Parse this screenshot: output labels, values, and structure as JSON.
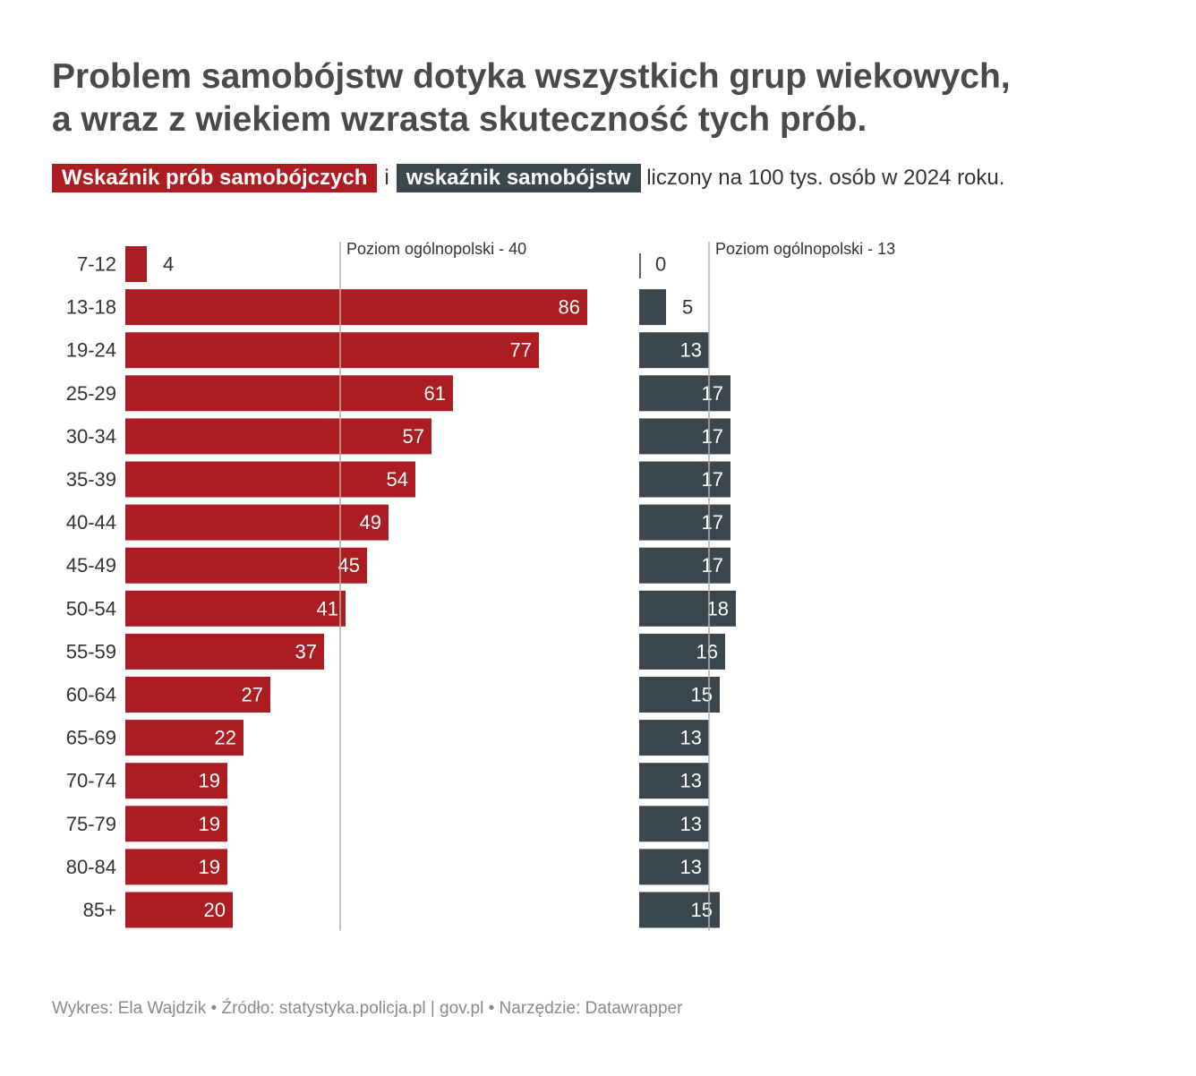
{
  "title_line1": "Problem samobójstw dotyka wszystkich grup wiekowych,",
  "title_line2": "a wraz z wiekiem wzrasta skuteczność tych prób.",
  "subtitle": {
    "highlight1": "Wskaźnik prób samobójczych",
    "connector": "i",
    "highlight2": "wskaźnik samobójstw",
    "rest": "liczony na 100 tys. osób w 2024 roku."
  },
  "colors": {
    "attempts": "#ad1c21",
    "suicides": "#3a474d",
    "reference_line": "#b3b3b3",
    "text": "#333333"
  },
  "chart_data": {
    "type": "bar",
    "orientation": "horizontal",
    "categories": [
      "7-12",
      "13-18",
      "19-24",
      "25-29",
      "30-34",
      "35-39",
      "40-44",
      "45-49",
      "50-54",
      "55-59",
      "60-64",
      "65-69",
      "70-74",
      "75-79",
      "80-84",
      "85+"
    ],
    "series": [
      {
        "name": "Wskaźnik prób samobójczych",
        "values": [
          4,
          86,
          77,
          61,
          57,
          54,
          49,
          45,
          41,
          37,
          27,
          22,
          19,
          19,
          19,
          20
        ],
        "reference": {
          "value": 40,
          "label": "Poziom ogólnopolski - 40"
        }
      },
      {
        "name": "wskaźnik samobójstw",
        "values": [
          0,
          5,
          13,
          17,
          17,
          17,
          17,
          17,
          18,
          16,
          15,
          13,
          13,
          13,
          13,
          15
        ],
        "reference": {
          "value": 13,
          "label": "Poziom ogólnopolski - 13"
        }
      }
    ],
    "grid": false,
    "legend": "in subtitle"
  },
  "footer": "Wykres: Ela Wajdzik • Źródło: statystyka.policja.pl | gov.pl • Narzędzie: Datawrapper"
}
